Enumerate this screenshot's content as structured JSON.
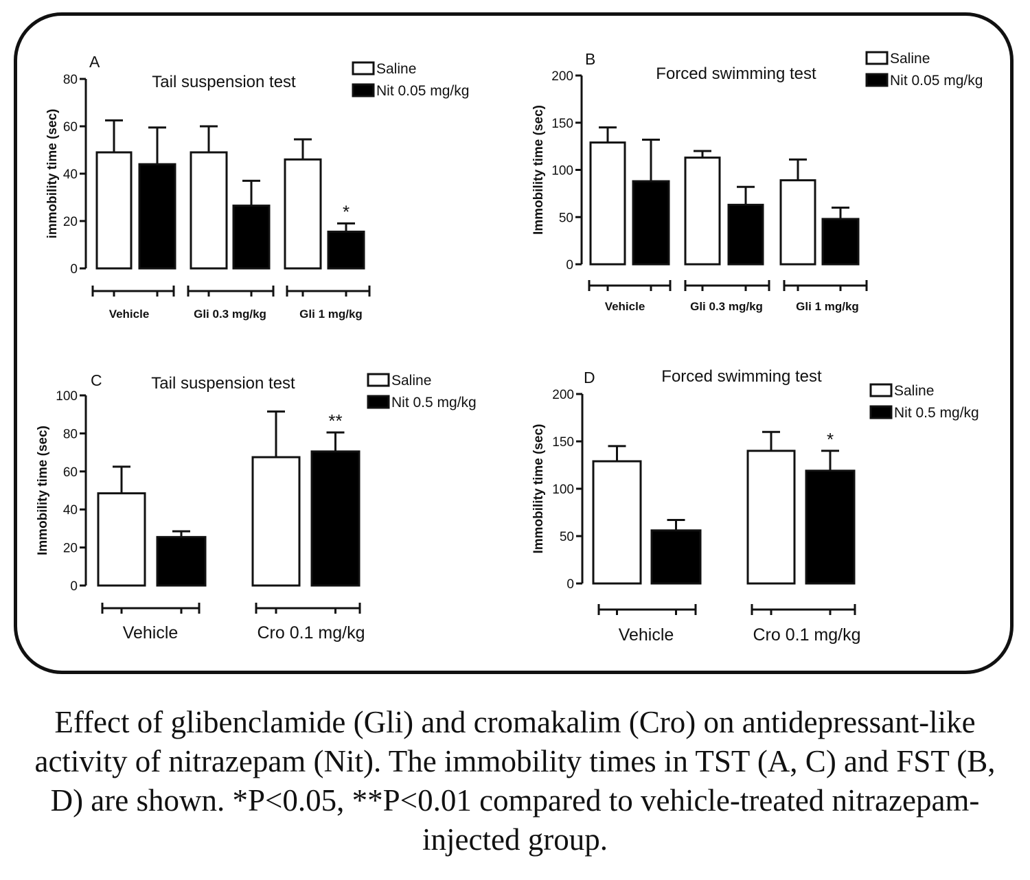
{
  "chart_data": [
    {
      "type": "bar",
      "panel_label": "A",
      "title": "Tail suspension test",
      "ylabel": "immobility time (sec)",
      "ylim": [
        0,
        80
      ],
      "yticks": [
        "0",
        "20",
        "40",
        "60",
        "80"
      ],
      "groups": [
        "Vehicle",
        "Gli 0.3 mg/kg",
        "Gli 1 mg/kg"
      ],
      "series": [
        {
          "name": "Saline",
          "values": [
            49,
            49,
            46
          ],
          "errors": [
            13.5,
            11,
            8.5
          ],
          "fill": "#ffffff"
        },
        {
          "name": "Nit 0.05 mg/kg",
          "values": [
            44,
            26.5,
            15.5
          ],
          "errors": [
            15.5,
            10.5,
            3.5
          ],
          "fill": "#000000"
        }
      ],
      "annotations": [
        "",
        "",
        "",
        "",
        "",
        "*"
      ],
      "legend": "top-right"
    },
    {
      "type": "bar",
      "panel_label": "B",
      "title": "Forced swimming test",
      "ylabel": "Immobility time (sec)",
      "ylim": [
        0,
        200
      ],
      "yticks": [
        "0",
        "50",
        "100",
        "150",
        "200"
      ],
      "groups": [
        "Vehicle",
        "Gli 0.3 mg/kg",
        "Gli 1 mg/kg"
      ],
      "series": [
        {
          "name": "Saline",
          "values": [
            129,
            113,
            89
          ],
          "errors": [
            16,
            7,
            22
          ],
          "fill": "#ffffff"
        },
        {
          "name": "Nit 0.05 mg/kg",
          "values": [
            88,
            63,
            48
          ],
          "errors": [
            44,
            19,
            12
          ],
          "fill": "#000000"
        }
      ],
      "annotations": [
        "",
        "",
        "",
        "",
        "",
        ""
      ],
      "legend": "top-right"
    },
    {
      "type": "bar",
      "panel_label": "C",
      "title": "Tail suspension test",
      "ylabel": "Immobility time (sec)",
      "ylim": [
        0,
        100
      ],
      "yticks": [
        "0",
        "20",
        "40",
        "60",
        "80",
        "100"
      ],
      "groups": [
        "Vehicle",
        "Cro 0.1 mg/kg"
      ],
      "series": [
        {
          "name": "Saline",
          "values": [
            48.5,
            67.5
          ],
          "errors": [
            14,
            24
          ],
          "fill": "#ffffff"
        },
        {
          "name": "Nit 0.5 mg/kg",
          "values": [
            25.5,
            70.5
          ],
          "errors": [
            3,
            10
          ],
          "fill": "#000000"
        }
      ],
      "annotations": [
        "",
        "",
        "",
        "**"
      ],
      "legend": "top-right"
    },
    {
      "type": "bar",
      "panel_label": "D",
      "title": "Forced swimming test",
      "ylabel": "Immobility time (sec)",
      "ylim": [
        0,
        200
      ],
      "yticks": [
        "0",
        "50",
        "100",
        "150",
        "200"
      ],
      "groups": [
        "Vehicle",
        "Cro 0.1 mg/kg"
      ],
      "series": [
        {
          "name": "Saline",
          "values": [
            129,
            140
          ],
          "errors": [
            16,
            20
          ],
          "fill": "#ffffff"
        },
        {
          "name": "Nit 0.5 mg/kg",
          "values": [
            56,
            119
          ],
          "errors": [
            11,
            21
          ],
          "fill": "#000000"
        }
      ],
      "annotations": [
        "",
        "",
        "",
        "*"
      ],
      "legend": "top-right"
    }
  ],
  "caption": "Effect of glibenclamide (Gli) and cromakalim (Cro) on antidepressant-like activity of nitrazepam (Nit). The immobility times in TST (A, C) and FST (B, D) are shown. *P<0.05, **P<0.01 compared to vehicle-treated nitrazepam-injected group."
}
